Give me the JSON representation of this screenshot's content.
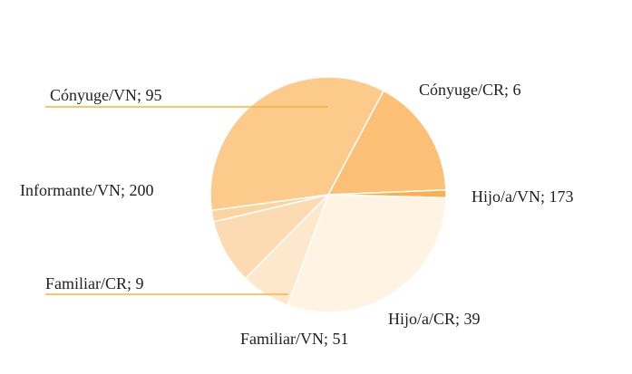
{
  "chart_data": {
    "type": "pie",
    "title": "",
    "slices": [
      {
        "label": "Cónyuge/VN; 95",
        "name": "Cónyuge/VN",
        "value": 95,
        "color": "#fbbf75"
      },
      {
        "label": "Cónyuge/CR; 6",
        "name": "Cónyuge/CR",
        "value": 6,
        "color": "#f9b14f"
      },
      {
        "label": "Hijo/a/VN; 173",
        "name": "Hijo/a/VN",
        "value": 173,
        "color": "#fff3e3"
      },
      {
        "label": "Hijo/a/CR; 39",
        "name": "Hijo/a/CR",
        "value": 39,
        "color": "#fde8cc"
      },
      {
        "label": "Familiar/VN; 51",
        "name": "Familiar/VN",
        "value": 51,
        "color": "#fddbb2"
      },
      {
        "label": "Familiar/CR; 9",
        "name": "Familiar/CR",
        "value": 9,
        "color": "#fcd49f"
      },
      {
        "label": "Informante/VN; 200",
        "name": "Informante/VN",
        "value": 200,
        "color": "#fccb8b"
      }
    ],
    "leader_color": "#f4b63a",
    "legend": "none"
  }
}
